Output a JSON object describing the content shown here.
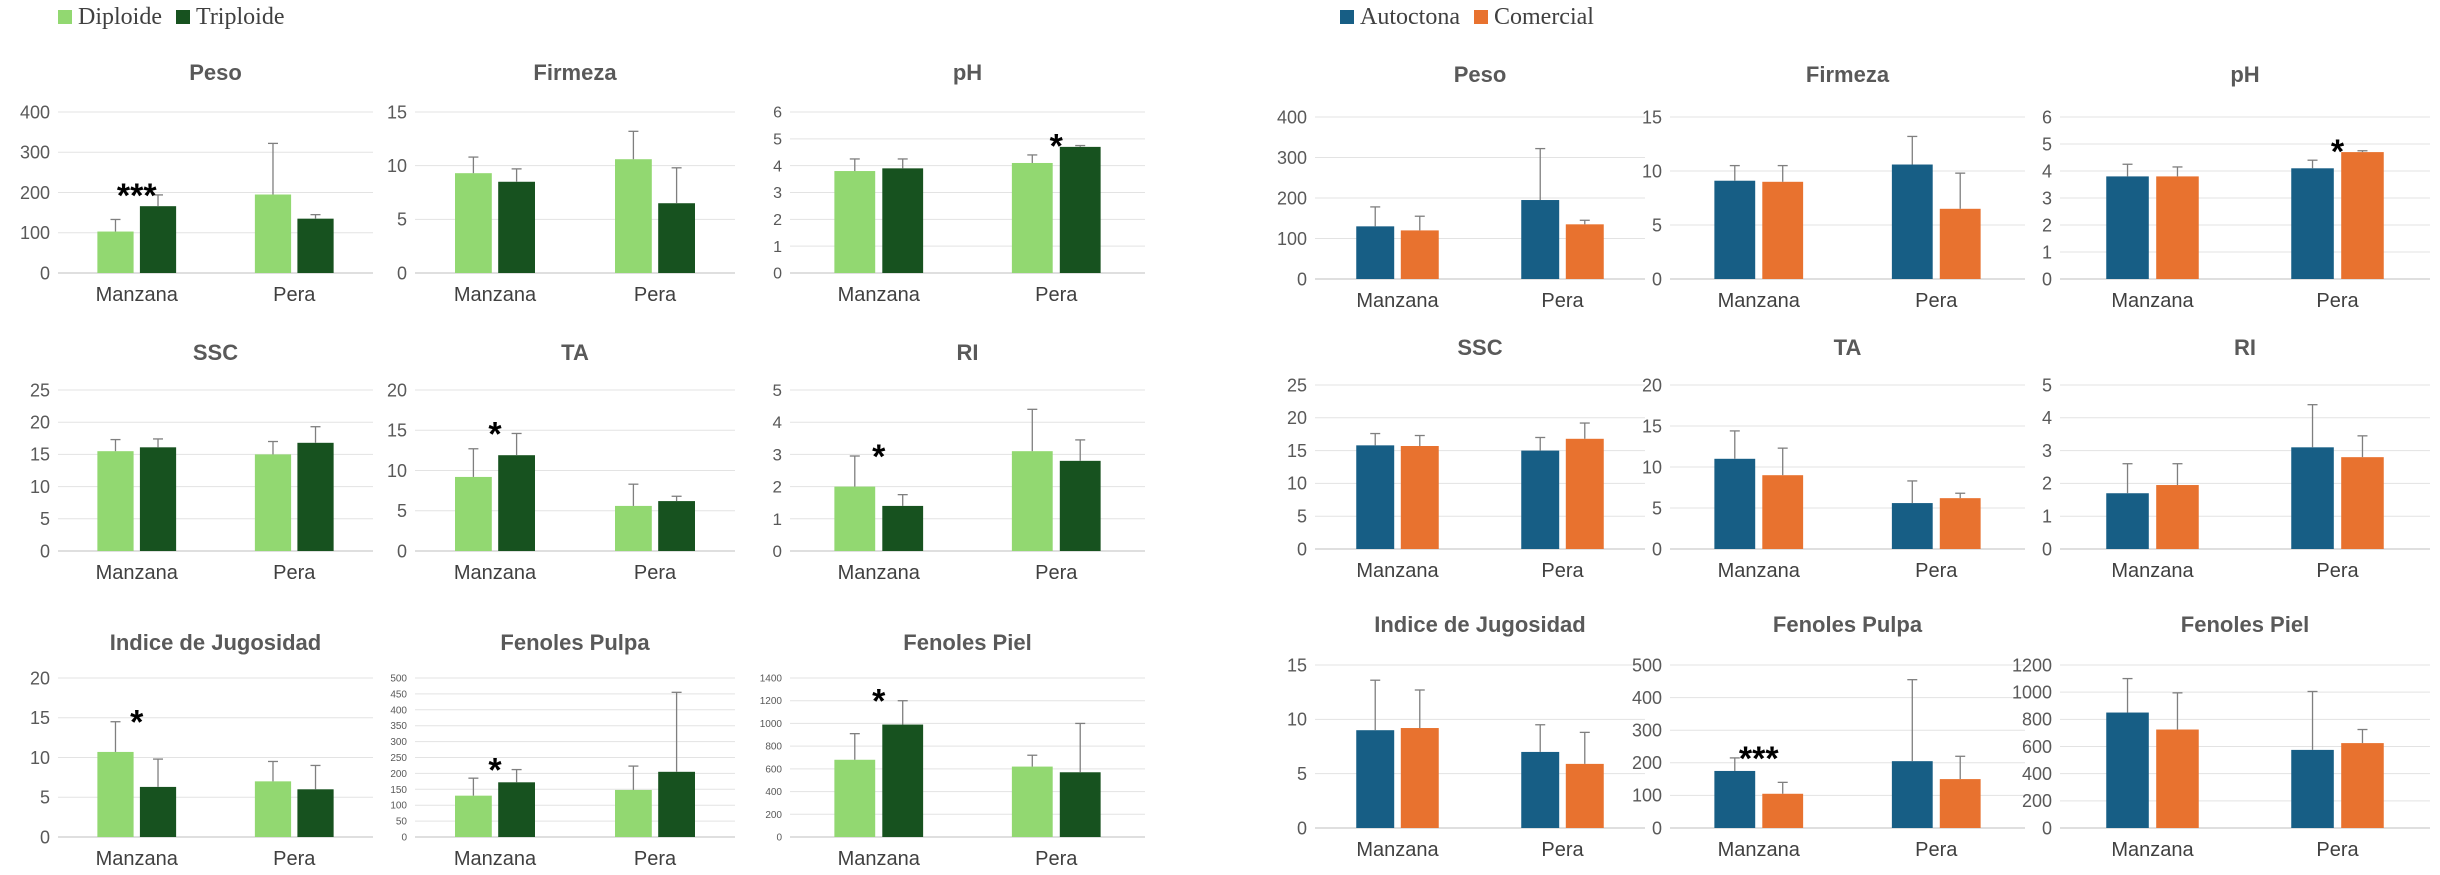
{
  "legends": [
    {
      "items": [
        {
          "label": "Diploide",
          "color": "#92d871"
        },
        {
          "label": "Triploide",
          "color": "#17521f"
        }
      ]
    },
    {
      "items": [
        {
          "label": "Autoctona",
          "color": "#175e85"
        },
        {
          "label": "Comercial",
          "color": "#e8722f"
        }
      ]
    }
  ],
  "chart_data": [
    {
      "type": "bar",
      "title": "Peso",
      "categories": [
        "Manzana",
        "Pera"
      ],
      "yticks": [
        0,
        100,
        200,
        300,
        400
      ],
      "ylim": [
        0,
        400
      ],
      "series": [
        {
          "name": "Diploide",
          "color": "#92d871",
          "values": [
            103,
            195
          ],
          "errors": [
            30,
            127
          ]
        },
        {
          "name": "Triploide",
          "color": "#17521f",
          "values": [
            166,
            135
          ],
          "errors": [
            28,
            10
          ]
        }
      ],
      "significance": [
        {
          "category": "Manzana",
          "label": "***"
        }
      ]
    },
    {
      "type": "bar",
      "title": "Firmeza",
      "categories": [
        "Manzana",
        "Pera"
      ],
      "yticks": [
        0,
        5,
        10,
        15
      ],
      "ylim": [
        0,
        15
      ],
      "series": [
        {
          "name": "Diploide",
          "color": "#92d871",
          "values": [
            9.3,
            10.6
          ],
          "errors": [
            1.5,
            2.6
          ]
        },
        {
          "name": "Triploide",
          "color": "#17521f",
          "values": [
            8.5,
            6.5
          ],
          "errors": [
            1.2,
            3.3
          ]
        }
      ],
      "significance": []
    },
    {
      "type": "bar",
      "title": "pH",
      "categories": [
        "Manzana",
        "Pera"
      ],
      "yticks": [
        0,
        1,
        2,
        3,
        4,
        5,
        6
      ],
      "ylim": [
        0,
        6
      ],
      "series": [
        {
          "name": "Diploide",
          "color": "#92d871",
          "values": [
            3.8,
            4.1
          ],
          "errors": [
            0.45,
            0.3
          ]
        },
        {
          "name": "Triploide",
          "color": "#17521f",
          "values": [
            3.9,
            4.7
          ],
          "errors": [
            0.35,
            0.05
          ]
        }
      ],
      "significance": [
        {
          "category": "Pera",
          "label": "*"
        }
      ]
    },
    {
      "type": "bar",
      "title": "SSC",
      "categories": [
        "Manzana",
        "Pera"
      ],
      "yticks": [
        0,
        5,
        10,
        15,
        20,
        25
      ],
      "ylim": [
        0,
        25
      ],
      "series": [
        {
          "name": "Diploide",
          "color": "#92d871",
          "values": [
            15.5,
            15.0
          ],
          "errors": [
            1.8,
            2.0
          ]
        },
        {
          "name": "Triploide",
          "color": "#17521f",
          "values": [
            16.1,
            16.8
          ],
          "errors": [
            1.3,
            2.5
          ]
        }
      ],
      "significance": []
    },
    {
      "type": "bar",
      "title": "TA",
      "categories": [
        "Manzana",
        "Pera"
      ],
      "yticks": [
        0,
        5,
        10,
        15,
        20
      ],
      "ylim": [
        0,
        20
      ],
      "series": [
        {
          "name": "Diploide",
          "color": "#92d871",
          "values": [
            9.2,
            5.6
          ],
          "errors": [
            3.5,
            2.7
          ]
        },
        {
          "name": "Triploide",
          "color": "#17521f",
          "values": [
            11.9,
            6.2
          ],
          "errors": [
            2.7,
            0.6
          ]
        }
      ],
      "significance": [
        {
          "category": "Manzana",
          "label": "*"
        }
      ]
    },
    {
      "type": "bar",
      "title": "RI",
      "categories": [
        "Manzana",
        "Pera"
      ],
      "yticks": [
        0,
        1,
        2,
        3,
        4,
        5
      ],
      "ylim": [
        0,
        5
      ],
      "series": [
        {
          "name": "Diploide",
          "color": "#92d871",
          "values": [
            2.0,
            3.1
          ],
          "errors": [
            0.95,
            1.3
          ]
        },
        {
          "name": "Triploide",
          "color": "#17521f",
          "values": [
            1.4,
            2.8
          ],
          "errors": [
            0.35,
            0.65
          ]
        }
      ],
      "significance": [
        {
          "category": "Manzana",
          "label": "*"
        }
      ]
    },
    {
      "type": "bar",
      "title": "Indice de Jugosidad",
      "categories": [
        "Manzana",
        "Pera"
      ],
      "yticks": [
        0,
        5,
        10,
        15,
        20
      ],
      "ylim": [
        0,
        20
      ],
      "series": [
        {
          "name": "Diploide",
          "color": "#92d871",
          "values": [
            10.7,
            7.0
          ],
          "errors": [
            3.8,
            2.5
          ]
        },
        {
          "name": "Triploide",
          "color": "#17521f",
          "values": [
            6.3,
            6.0
          ],
          "errors": [
            3.5,
            3.0
          ]
        }
      ],
      "significance": [
        {
          "category": "Manzana",
          "label": "*"
        }
      ]
    },
    {
      "type": "bar",
      "title": "Fenoles Pulpa",
      "categories": [
        "Manzana",
        "Pera"
      ],
      "yticks": [
        0,
        50,
        100,
        150,
        200,
        250,
        300,
        350,
        400,
        450,
        500
      ],
      "ylim": [
        0,
        500
      ],
      "series": [
        {
          "name": "Diploide",
          "color": "#92d871",
          "values": [
            130,
            148
          ],
          "errors": [
            55,
            75
          ]
        },
        {
          "name": "Triploide",
          "color": "#17521f",
          "values": [
            172,
            205
          ],
          "errors": [
            40,
            250
          ]
        }
      ],
      "significance": [
        {
          "category": "Manzana",
          "label": "*"
        }
      ]
    },
    {
      "type": "bar",
      "title": "Fenoles Piel",
      "categories": [
        "Manzana",
        "Pera"
      ],
      "yticks": [
        0,
        200,
        400,
        600,
        800,
        1000,
        1200,
        1400
      ],
      "ylim": [
        0,
        1400
      ],
      "series": [
        {
          "name": "Diploide",
          "color": "#92d871",
          "values": [
            680,
            620
          ],
          "errors": [
            230,
            100
          ]
        },
        {
          "name": "Triploide",
          "color": "#17521f",
          "values": [
            990,
            570
          ],
          "errors": [
            210,
            430
          ]
        }
      ],
      "significance": [
        {
          "category": "Manzana",
          "label": "*"
        }
      ]
    },
    {
      "type": "bar",
      "title": "Peso",
      "categories": [
        "Manzana",
        "Pera"
      ],
      "yticks": [
        0,
        100,
        200,
        300,
        400
      ],
      "ylim": [
        0,
        400
      ],
      "series": [
        {
          "name": "Autoctona",
          "color": "#175e85",
          "values": [
            130,
            195
          ],
          "errors": [
            48,
            127
          ]
        },
        {
          "name": "Comercial",
          "color": "#e8722f",
          "values": [
            120,
            135
          ],
          "errors": [
            35,
            10
          ]
        }
      ],
      "significance": []
    },
    {
      "type": "bar",
      "title": "Firmeza",
      "categories": [
        "Manzana",
        "Pera"
      ],
      "yticks": [
        0,
        5,
        10,
        15
      ],
      "ylim": [
        0,
        15
      ],
      "series": [
        {
          "name": "Autoctona",
          "color": "#175e85",
          "values": [
            9.1,
            10.6
          ],
          "errors": [
            1.4,
            2.6
          ]
        },
        {
          "name": "Comercial",
          "color": "#e8722f",
          "values": [
            9.0,
            6.5
          ],
          "errors": [
            1.5,
            3.3
          ]
        }
      ],
      "significance": []
    },
    {
      "type": "bar",
      "title": "pH",
      "categories": [
        "Manzana",
        "Pera"
      ],
      "yticks": [
        0,
        1,
        2,
        3,
        4,
        5,
        6
      ],
      "ylim": [
        0,
        6
      ],
      "series": [
        {
          "name": "Autoctona",
          "color": "#175e85",
          "values": [
            3.8,
            4.1
          ],
          "errors": [
            0.45,
            0.3
          ]
        },
        {
          "name": "Comercial",
          "color": "#e8722f",
          "values": [
            3.8,
            4.7
          ],
          "errors": [
            0.35,
            0.05
          ]
        }
      ],
      "significance": [
        {
          "category": "Pera",
          "label": "*"
        }
      ]
    },
    {
      "type": "bar",
      "title": "SSC",
      "categories": [
        "Manzana",
        "Pera"
      ],
      "yticks": [
        0,
        5,
        10,
        15,
        20,
        25
      ],
      "ylim": [
        0,
        25
      ],
      "series": [
        {
          "name": "Autoctona",
          "color": "#175e85",
          "values": [
            15.8,
            15.0
          ],
          "errors": [
            1.8,
            2.0
          ]
        },
        {
          "name": "Comercial",
          "color": "#e8722f",
          "values": [
            15.7,
            16.8
          ],
          "errors": [
            1.6,
            2.4
          ]
        }
      ],
      "significance": []
    },
    {
      "type": "bar",
      "title": "TA",
      "categories": [
        "Manzana",
        "Pera"
      ],
      "yticks": [
        0,
        5,
        10,
        15,
        20
      ],
      "ylim": [
        0,
        20
      ],
      "series": [
        {
          "name": "Autoctona",
          "color": "#175e85",
          "values": [
            11.0,
            5.6
          ],
          "errors": [
            3.4,
            2.7
          ]
        },
        {
          "name": "Comercial",
          "color": "#e8722f",
          "values": [
            9.0,
            6.2
          ],
          "errors": [
            3.3,
            0.6
          ]
        }
      ],
      "significance": []
    },
    {
      "type": "bar",
      "title": "RI",
      "categories": [
        "Manzana",
        "Pera"
      ],
      "yticks": [
        0,
        1,
        2,
        3,
        4,
        5
      ],
      "ylim": [
        0,
        5
      ],
      "series": [
        {
          "name": "Autoctona",
          "color": "#175e85",
          "values": [
            1.7,
            3.1
          ],
          "errors": [
            0.9,
            1.3
          ]
        },
        {
          "name": "Comercial",
          "color": "#e8722f",
          "values": [
            1.95,
            2.8
          ],
          "errors": [
            0.65,
            0.65
          ]
        }
      ],
      "significance": []
    },
    {
      "type": "bar",
      "title": "Indice de Jugosidad",
      "categories": [
        "Manzana",
        "Pera"
      ],
      "yticks": [
        0,
        5,
        10,
        15
      ],
      "ylim": [
        0,
        15
      ],
      "series": [
        {
          "name": "Autoctona",
          "color": "#175e85",
          "values": [
            9.0,
            7.0
          ],
          "errors": [
            4.6,
            2.5
          ]
        },
        {
          "name": "Comercial",
          "color": "#e8722f",
          "values": [
            9.2,
            5.9
          ],
          "errors": [
            3.5,
            2.9
          ]
        }
      ],
      "significance": []
    },
    {
      "type": "bar",
      "title": "Fenoles Pulpa",
      "categories": [
        "Manzana",
        "Pera"
      ],
      "yticks": [
        0,
        100,
        200,
        300,
        400,
        500
      ],
      "ylim": [
        0,
        500
      ],
      "series": [
        {
          "name": "Autoctona",
          "color": "#175e85",
          "values": [
            175,
            205
          ],
          "errors": [
            40,
            250
          ]
        },
        {
          "name": "Comercial",
          "color": "#e8722f",
          "values": [
            105,
            150
          ],
          "errors": [
            35,
            70
          ]
        }
      ],
      "significance": [
        {
          "category": "Manzana",
          "label": "***"
        }
      ]
    },
    {
      "type": "bar",
      "title": "Fenoles Piel",
      "categories": [
        "Manzana",
        "Pera"
      ],
      "yticks": [
        0,
        200,
        400,
        600,
        800,
        1000,
        1200
      ],
      "ylim": [
        0,
        1200
      ],
      "series": [
        {
          "name": "Autoctona",
          "color": "#175e85",
          "values": [
            850,
            575
          ],
          "errors": [
            250,
            430
          ]
        },
        {
          "name": "Comercial",
          "color": "#e8722f",
          "values": [
            725,
            625
          ],
          "errors": [
            270,
            100
          ]
        }
      ],
      "significance": []
    }
  ]
}
